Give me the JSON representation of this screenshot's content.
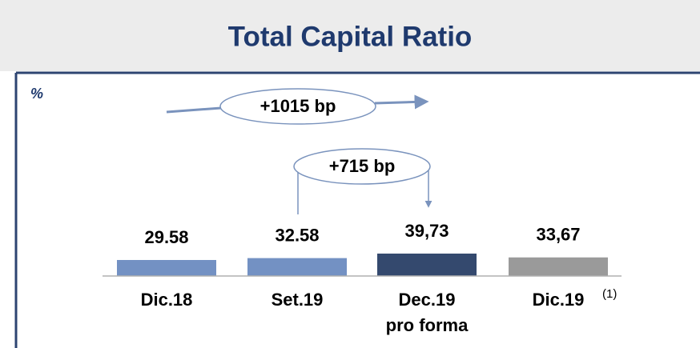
{
  "chart_data": {
    "type": "bar",
    "title": "Total Capital Ratio",
    "unit_label": "%",
    "categories": [
      "Dic.18",
      "Set.19",
      "Dec.19\npro forma",
      "Dic.19"
    ],
    "values": [
      29.58,
      32.58,
      39.73,
      33.67
    ],
    "value_labels": [
      "29.58",
      "32.58",
      "39,73",
      "33,67"
    ],
    "colors": [
      "#7391c3",
      "#7391c3",
      "#34496e",
      "#9a9a9a"
    ],
    "ylim": [
      4.2,
      60
    ],
    "annotations": [
      "+1015 bp",
      "+715 bp"
    ],
    "footnote_mark": "(1)"
  }
}
